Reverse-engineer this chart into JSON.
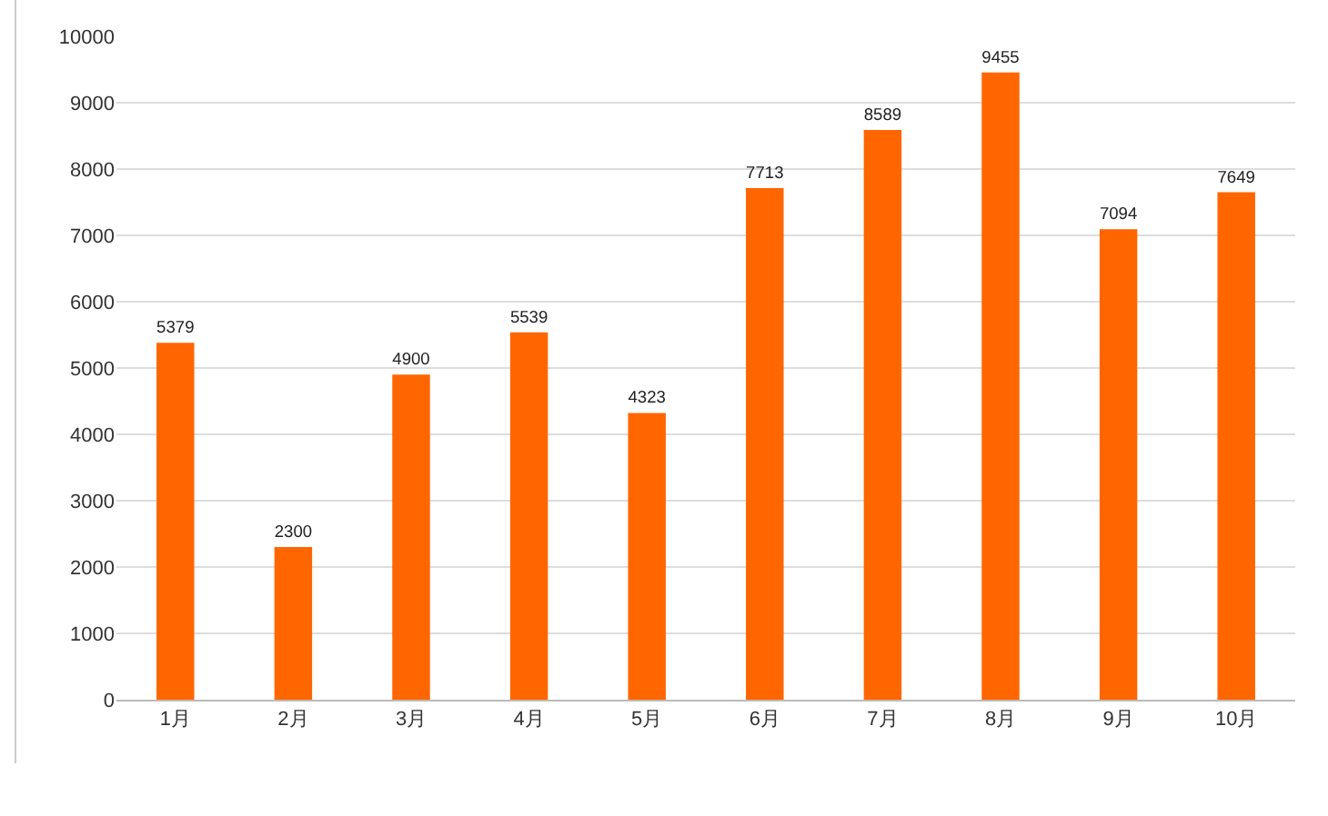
{
  "chart_data": {
    "type": "bar",
    "categories": [
      "1月",
      "2月",
      "3月",
      "4月",
      "5月",
      "6月",
      "7月",
      "8月",
      "9月",
      "10月"
    ],
    "values": [
      5379,
      2300,
      4900,
      5539,
      4323,
      7713,
      8589,
      9455,
      7094,
      7649
    ],
    "color": "#ff6600",
    "data_labels": true,
    "grid": "y",
    "legend": false,
    "ylim": [
      0,
      10000
    ],
    "yticks": [
      0,
      1000,
      2000,
      3000,
      4000,
      5000,
      6000,
      7000,
      8000,
      9000,
      10000
    ]
  }
}
